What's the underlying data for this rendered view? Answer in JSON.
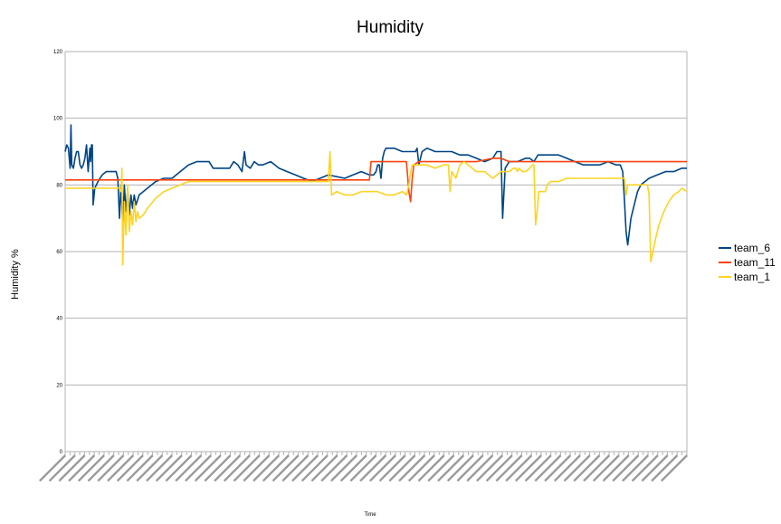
{
  "chart_data": {
    "type": "line",
    "title": "Humidity",
    "xlabel": "Time",
    "ylabel": "Humidity %",
    "ylim": [
      0,
      120
    ],
    "yticks": [
      0,
      20,
      40,
      60,
      80,
      100,
      120
    ],
    "grid": true,
    "legend_position": "right",
    "x_tick_count": 129,
    "x_tick_labels": "dense rotated date-time labels (illegible)",
    "x_index_max": 1000,
    "series": [
      {
        "name": "team_6",
        "color": "#004586",
        "points": [
          [
            0,
            90
          ],
          [
            2,
            92
          ],
          [
            4,
            91
          ],
          [
            6,
            85
          ],
          [
            7,
            98
          ],
          [
            8,
            86
          ],
          [
            10,
            85
          ],
          [
            12,
            88
          ],
          [
            14,
            90
          ],
          [
            16,
            90
          ],
          [
            18,
            86
          ],
          [
            20,
            85
          ],
          [
            22,
            86
          ],
          [
            24,
            88
          ],
          [
            26,
            92
          ],
          [
            28,
            84
          ],
          [
            30,
            91
          ],
          [
            31,
            87
          ],
          [
            32,
            92
          ],
          [
            33,
            92
          ],
          [
            34,
            74
          ],
          [
            36,
            79
          ],
          [
            40,
            81
          ],
          [
            45,
            83
          ],
          [
            50,
            84
          ],
          [
            56,
            84
          ],
          [
            60,
            84
          ],
          [
            62,
            84
          ],
          [
            64,
            82
          ],
          [
            66,
            70
          ],
          [
            68,
            80
          ],
          [
            70,
            68
          ],
          [
            72,
            80
          ],
          [
            74,
            72
          ],
          [
            76,
            79
          ],
          [
            78,
            71
          ],
          [
            80,
            77
          ],
          [
            82,
            73
          ],
          [
            84,
            77
          ],
          [
            86,
            74
          ],
          [
            90,
            77
          ],
          [
            100,
            79
          ],
          [
            110,
            81
          ],
          [
            120,
            82
          ],
          [
            130,
            82
          ],
          [
            140,
            84
          ],
          [
            150,
            86
          ],
          [
            160,
            87
          ],
          [
            170,
            87
          ],
          [
            175,
            87
          ],
          [
            180,
            85
          ],
          [
            190,
            85
          ],
          [
            200,
            85
          ],
          [
            205,
            87
          ],
          [
            210,
            86
          ],
          [
            215,
            84
          ],
          [
            218,
            90
          ],
          [
            220,
            86
          ],
          [
            225,
            85
          ],
          [
            230,
            87
          ],
          [
            235,
            86
          ],
          [
            240,
            86
          ],
          [
            250,
            87
          ],
          [
            260,
            85
          ],
          [
            270,
            84
          ],
          [
            280,
            83
          ],
          [
            290,
            82
          ],
          [
            300,
            81
          ],
          [
            310,
            82
          ],
          [
            320,
            83
          ],
          [
            340,
            82
          ],
          [
            350,
            83
          ],
          [
            360,
            84
          ],
          [
            370,
            83
          ],
          [
            375,
            83
          ],
          [
            378,
            84
          ],
          [
            380,
            86
          ],
          [
            382,
            86
          ],
          [
            384,
            82
          ],
          [
            386,
            88
          ],
          [
            388,
            90
          ],
          [
            390,
            91
          ],
          [
            400,
            91
          ],
          [
            410,
            90
          ],
          [
            420,
            90
          ],
          [
            426,
            90
          ],
          [
            428,
            91
          ],
          [
            430,
            86
          ],
          [
            432,
            88
          ],
          [
            434,
            90
          ],
          [
            440,
            91
          ],
          [
            450,
            90
          ],
          [
            460,
            90
          ],
          [
            470,
            90
          ],
          [
            480,
            89
          ],
          [
            490,
            89
          ],
          [
            500,
            88
          ],
          [
            510,
            87
          ],
          [
            520,
            88
          ],
          [
            525,
            90
          ],
          [
            530,
            90
          ],
          [
            532,
            70
          ],
          [
            535,
            85
          ],
          [
            540,
            87
          ],
          [
            550,
            87
          ],
          [
            560,
            88
          ],
          [
            565,
            88
          ],
          [
            570,
            87
          ],
          [
            575,
            89
          ],
          [
            580,
            89
          ],
          [
            590,
            89
          ],
          [
            600,
            89
          ],
          [
            610,
            88
          ],
          [
            620,
            87
          ],
          [
            630,
            86
          ],
          [
            640,
            86
          ],
          [
            650,
            86
          ],
          [
            660,
            87
          ],
          [
            670,
            86
          ],
          [
            675,
            86
          ],
          [
            678,
            84
          ],
          [
            680,
            76
          ],
          [
            682,
            66
          ],
          [
            684,
            62
          ],
          [
            686,
            66
          ],
          [
            688,
            70
          ],
          [
            692,
            74
          ],
          [
            696,
            78
          ],
          [
            700,
            80
          ],
          [
            710,
            82
          ],
          [
            720,
            83
          ],
          [
            730,
            84
          ],
          [
            740,
            84
          ],
          [
            750,
            85
          ],
          [
            756,
            85
          ]
        ]
      },
      {
        "name": "team_11",
        "color": "#ff420e",
        "points": [
          [
            0,
            81.5
          ],
          [
            368,
            81.5
          ],
          [
            370,
            81.5
          ],
          [
            372,
            87
          ],
          [
            380,
            87
          ],
          [
            415,
            87
          ],
          [
            418,
            78
          ],
          [
            420,
            75
          ],
          [
            422,
            82
          ],
          [
            424,
            86
          ],
          [
            430,
            87
          ],
          [
            456,
            87
          ],
          [
            460,
            87
          ],
          [
            500,
            87
          ],
          [
            520,
            88
          ],
          [
            530,
            88
          ],
          [
            540,
            87
          ],
          [
            600,
            87
          ],
          [
            650,
            87
          ],
          [
            700,
            87
          ],
          [
            756,
            87
          ]
        ]
      },
      {
        "name": "team_1",
        "color": "#ffd320",
        "points": [
          [
            0,
            79
          ],
          [
            66,
            79
          ],
          [
            68,
            78
          ],
          [
            69,
            85
          ],
          [
            70,
            56
          ],
          [
            72,
            75
          ],
          [
            74,
            65
          ],
          [
            76,
            80
          ],
          [
            78,
            66
          ],
          [
            80,
            72
          ],
          [
            82,
            68
          ],
          [
            84,
            75
          ],
          [
            86,
            69
          ],
          [
            88,
            72
          ],
          [
            90,
            70
          ],
          [
            95,
            71
          ],
          [
            100,
            73
          ],
          [
            110,
            76
          ],
          [
            120,
            78
          ],
          [
            130,
            79
          ],
          [
            140,
            80
          ],
          [
            150,
            81
          ],
          [
            160,
            81
          ],
          [
            170,
            81
          ],
          [
            180,
            81
          ],
          [
            200,
            81
          ],
          [
            220,
            81
          ],
          [
            240,
            81
          ],
          [
            260,
            81
          ],
          [
            280,
            81
          ],
          [
            300,
            81
          ],
          [
            320,
            81
          ],
          [
            322,
            90
          ],
          [
            324,
            77
          ],
          [
            330,
            78
          ],
          [
            340,
            77
          ],
          [
            350,
            77
          ],
          [
            360,
            78
          ],
          [
            370,
            78
          ],
          [
            380,
            78
          ],
          [
            390,
            77
          ],
          [
            400,
            77
          ],
          [
            410,
            78
          ],
          [
            415,
            77
          ],
          [
            418,
            80
          ],
          [
            420,
            84
          ],
          [
            422,
            86
          ],
          [
            430,
            86
          ],
          [
            440,
            86
          ],
          [
            450,
            85
          ],
          [
            460,
            86
          ],
          [
            466,
            86
          ],
          [
            468,
            78
          ],
          [
            470,
            84
          ],
          [
            475,
            82
          ],
          [
            480,
            86
          ],
          [
            485,
            87
          ],
          [
            490,
            86
          ],
          [
            500,
            84
          ],
          [
            510,
            84
          ],
          [
            520,
            82
          ],
          [
            530,
            84
          ],
          [
            540,
            84
          ],
          [
            545,
            85
          ],
          [
            548,
            85
          ],
          [
            550,
            84
          ],
          [
            552,
            85
          ],
          [
            556,
            84
          ],
          [
            560,
            84
          ],
          [
            565,
            85
          ],
          [
            568,
            86
          ],
          [
            570,
            86
          ],
          [
            572,
            68
          ],
          [
            574,
            72
          ],
          [
            576,
            78
          ],
          [
            580,
            78
          ],
          [
            584,
            78
          ],
          [
            586,
            80
          ],
          [
            590,
            81
          ],
          [
            600,
            81
          ],
          [
            610,
            82
          ],
          [
            620,
            82
          ],
          [
            640,
            82
          ],
          [
            660,
            82
          ],
          [
            680,
            82
          ],
          [
            682,
            77
          ],
          [
            684,
            80
          ],
          [
            690,
            80
          ],
          [
            700,
            80
          ],
          [
            708,
            80
          ],
          [
            710,
            77
          ],
          [
            712,
            57
          ],
          [
            714,
            59
          ],
          [
            718,
            64
          ],
          [
            722,
            68
          ],
          [
            728,
            72
          ],
          [
            734,
            75
          ],
          [
            740,
            77
          ],
          [
            746,
            78
          ],
          [
            750,
            79
          ],
          [
            756,
            78
          ]
        ]
      }
    ]
  }
}
